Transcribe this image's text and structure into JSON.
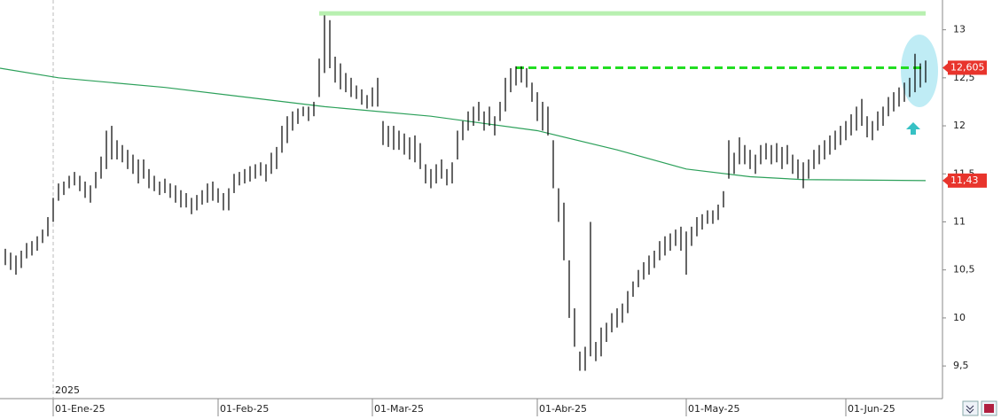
{
  "chart_data": {
    "type": "ohlc",
    "color": "#000000",
    "xlim": [
      -1,
      174
    ],
    "ylim": [
      9.16,
      13.31
    ],
    "yticks": [
      {
        "value": 13,
        "label": "13"
      },
      {
        "value": 12.5,
        "label": "12,5"
      },
      {
        "value": 12,
        "label": "12"
      },
      {
        "value": 11.5,
        "label": "11,5"
      },
      {
        "value": 11,
        "label": "11"
      },
      {
        "value": 10.5,
        "label": "10,5"
      },
      {
        "value": 10,
        "label": "10"
      },
      {
        "value": 9.5,
        "label": "9,5"
      }
    ],
    "xticks": [
      {
        "value": 9,
        "label": "01-Ene-25"
      },
      {
        "value": 40,
        "label": "01-Feb-25"
      },
      {
        "value": 69,
        "label": "01-Mar-25"
      },
      {
        "value": 100,
        "label": "01-Abr-25"
      },
      {
        "value": 128,
        "label": "01-May-25"
      },
      {
        "value": 158,
        "label": "01-Jun-25"
      }
    ],
    "year_label": {
      "value": 9,
      "label": "2025"
    },
    "high": [
      10.72,
      10.68,
      10.65,
      10.7,
      10.78,
      10.8,
      10.85,
      10.92,
      11.05,
      11.25,
      11.4,
      11.42,
      11.48,
      11.52,
      11.48,
      11.42,
      11.38,
      11.52,
      11.68,
      11.95,
      12.0,
      11.85,
      11.8,
      11.75,
      11.7,
      11.65,
      11.65,
      11.55,
      11.48,
      11.42,
      11.45,
      11.4,
      11.38,
      11.33,
      11.3,
      11.25,
      11.28,
      11.33,
      11.4,
      11.42,
      11.35,
      11.3,
      11.35,
      11.5,
      11.52,
      11.55,
      11.58,
      11.6,
      11.62,
      11.6,
      11.72,
      11.78,
      12.0,
      12.1,
      12.15,
      12.18,
      12.2,
      12.2,
      12.25,
      12.7,
      13.15,
      13.1,
      12.72,
      12.65,
      12.55,
      12.5,
      12.42,
      12.38,
      12.32,
      12.4,
      12.5,
      12.05,
      12.0,
      12.0,
      11.95,
      11.92,
      11.88,
      11.9,
      11.82,
      11.6,
      11.55,
      11.6,
      11.65,
      11.55,
      11.62,
      11.95,
      12.05,
      12.15,
      12.2,
      12.25,
      12.15,
      12.2,
      12.1,
      12.25,
      12.5,
      12.6,
      12.62,
      12.62,
      12.6,
      12.45,
      12.35,
      12.25,
      12.2,
      11.85,
      11.35,
      11.2,
      10.6,
      10.1,
      9.65,
      9.7,
      11.0,
      9.75,
      9.9,
      9.95,
      10.05,
      10.1,
      10.15,
      10.28,
      10.38,
      10.5,
      10.58,
      10.65,
      10.7,
      10.8,
      10.85,
      10.88,
      10.92,
      10.95,
      10.9,
      10.95,
      11.05,
      11.08,
      11.12,
      11.12,
      11.18,
      11.32,
      11.85,
      11.72,
      11.88,
      11.8,
      11.75,
      11.7,
      11.8,
      11.82,
      11.8,
      11.82,
      11.78,
      11.8,
      11.7,
      11.65,
      11.62,
      11.65,
      11.75,
      11.8,
      11.85,
      11.9,
      11.95,
      12.0,
      12.05,
      12.12,
      12.2,
      12.28,
      12.1,
      12.05,
      12.15,
      12.2,
      12.3,
      12.35,
      12.4,
      12.45,
      12.5,
      12.75,
      12.65,
      12.68
    ],
    "low": [
      10.55,
      10.5,
      10.45,
      10.52,
      10.62,
      10.65,
      10.7,
      10.78,
      10.85,
      11.0,
      11.22,
      11.28,
      11.35,
      11.38,
      11.32,
      11.25,
      11.2,
      11.35,
      11.45,
      11.55,
      11.65,
      11.65,
      11.62,
      11.55,
      11.5,
      11.4,
      11.45,
      11.35,
      11.32,
      11.28,
      11.3,
      11.25,
      11.2,
      11.15,
      11.15,
      11.08,
      11.12,
      11.18,
      11.2,
      11.22,
      11.2,
      11.12,
      11.12,
      11.3,
      11.38,
      11.4,
      11.42,
      11.45,
      11.48,
      11.42,
      11.5,
      11.55,
      11.72,
      11.82,
      11.95,
      12.02,
      12.1,
      12.05,
      12.1,
      12.3,
      12.55,
      12.6,
      12.45,
      12.38,
      12.35,
      12.3,
      12.28,
      12.22,
      12.18,
      12.2,
      12.2,
      11.8,
      11.78,
      11.75,
      11.75,
      11.7,
      11.65,
      11.62,
      11.55,
      11.4,
      11.35,
      11.4,
      11.45,
      11.38,
      11.4,
      11.65,
      11.85,
      11.95,
      12.0,
      12.05,
      11.95,
      12.0,
      11.9,
      12.05,
      12.15,
      12.35,
      12.42,
      12.45,
      12.4,
      12.25,
      12.05,
      11.95,
      11.9,
      11.35,
      11.0,
      10.6,
      10.0,
      9.7,
      9.45,
      9.45,
      9.6,
      9.55,
      9.6,
      9.75,
      9.85,
      9.9,
      9.95,
      10.05,
      10.22,
      10.32,
      10.4,
      10.45,
      10.52,
      10.6,
      10.65,
      10.7,
      10.75,
      10.7,
      10.45,
      10.75,
      10.85,
      10.92,
      10.98,
      10.98,
      11.02,
      11.15,
      11.45,
      11.5,
      11.6,
      11.6,
      11.55,
      11.5,
      11.6,
      11.65,
      11.6,
      11.62,
      11.55,
      11.6,
      11.5,
      11.45,
      11.35,
      11.45,
      11.55,
      11.6,
      11.65,
      11.7,
      11.75,
      11.8,
      11.85,
      11.9,
      11.95,
      12.0,
      11.88,
      11.85,
      11.95,
      12.0,
      12.1,
      12.15,
      12.2,
      12.25,
      12.3,
      12.35,
      12.4,
      12.45
    ],
    "moving_average": {
      "color": "#2ca05a",
      "x": [
        -1,
        10,
        30,
        60,
        80,
        100,
        115,
        128,
        140,
        150,
        173
      ],
      "values": [
        12.6,
        12.5,
        12.4,
        12.2,
        12.1,
        11.95,
        11.75,
        11.55,
        11.47,
        11.44,
        11.43
      ]
    },
    "levels": [
      {
        "value": 13.17,
        "x": [
          59,
          173
        ],
        "color": "#b8f0b0",
        "style": "solid"
      },
      {
        "value": 12.605,
        "x": [
          96,
          173
        ],
        "color": "#22dd22",
        "style": "dashed"
      }
    ],
    "price_labels": [
      {
        "value": 12.605,
        "label": "12,605",
        "color": "#e8342c"
      },
      {
        "value": 11.43,
        "label": "11,43",
        "color": "#e8342c"
      }
    ]
  }
}
